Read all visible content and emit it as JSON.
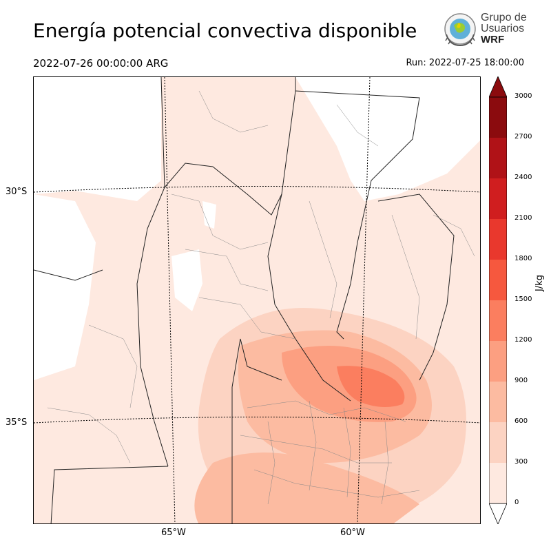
{
  "title": "Energía potencial convectiva disponible",
  "valid_time": "2022-07-26 00:00:00 ARG",
  "run_time": "Run: 2022-07-25 18:00:00",
  "logo": {
    "line1": "Grupo de",
    "line2": "Usuarios",
    "line3": "WRF"
  },
  "map": {
    "lat_labels": [
      "30°S",
      "35°S"
    ],
    "lon_labels": [
      "65°W",
      "60°W"
    ]
  },
  "colorbar": {
    "unit": "J/kg",
    "ticks": [
      "0",
      "300",
      "600",
      "900",
      "1200",
      "1500",
      "1800",
      "2100",
      "2400",
      "2700",
      "3000"
    ],
    "colors": [
      "#fee9e0",
      "#fcd3c2",
      "#fcbba1",
      "#fc9f81",
      "#fb7e5f",
      "#f6583e",
      "#e9382d",
      "#d01e1f",
      "#b01217",
      "#8b0b0e"
    ]
  }
}
